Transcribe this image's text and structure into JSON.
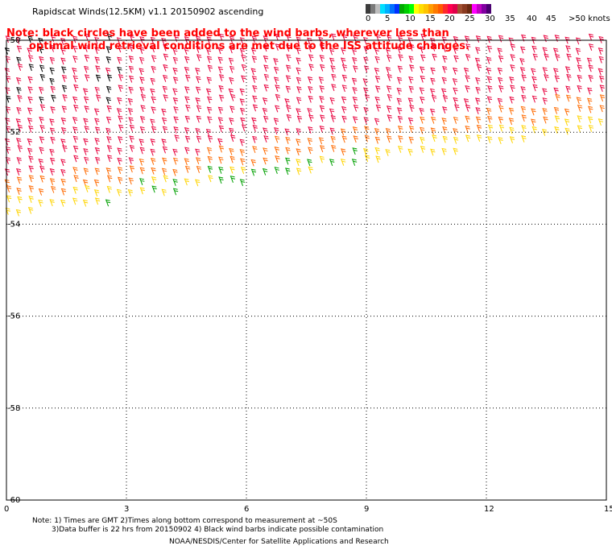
{
  "title": "Rapidscat Winds(12.5KM) v1.1 20150902 ascending",
  "note": {
    "line1": "Note: black circles have been added to the wind barbs, wherever less than",
    "line2": "optimal wind retrieval conditions are met due to the ISS attitude changes."
  },
  "color_scale": {
    "colors": [
      "#3c3c3c",
      "#7a7a7a",
      "#bdbdbd",
      "#00e0ff",
      "#00b0ff",
      "#0070ff",
      "#0030ff",
      "#00aa00",
      "#00d000",
      "#00ff00",
      "#ffff00",
      "#ffdd00",
      "#ffc400",
      "#ff9c00",
      "#ff7a00",
      "#ff5a00",
      "#ff2a2a",
      "#ff0050",
      "#e0004a",
      "#a05030",
      "#8a3a20",
      "#6a2a10",
      "#ff00ff",
      "#c000c0",
      "#8000a0",
      "#4a0070"
    ],
    "labels": [
      "0",
      "5",
      "10",
      "15",
      "20",
      "25",
      "30",
      "35",
      "40",
      "45",
      ">50 knots"
    ]
  },
  "axes": {
    "x_ticks": [
      "0",
      "3",
      "6",
      "9",
      "12",
      "15"
    ],
    "y_ticks": [
      "-50",
      "-52",
      "-54",
      "-56",
      "-58",
      "-60"
    ]
  },
  "footnotes": {
    "line1": "Note: 1) Times are GMT 2)Times along bottom correspond to measurement at ~50S",
    "line2": "3)Data buffer is 22 hrs from 20150902 4) Black wind barbs indicate possible contamination",
    "line3": "NOAA/NESDIS/Center for Satellite Applications and Research"
  },
  "map": {
    "lon_range": [
      0,
      15
    ],
    "lat_range": [
      -60,
      -50
    ],
    "coverage": "swath of wind barbs across northern part of map, lower edge slanting from about -53.9 at lon 0 to -52 at lon 15",
    "barb_colors": {
      "strong": "#e8003c",
      "moderate": "#ff6a00",
      "light": "#ffd400",
      "weak": "#00a000",
      "flagged": "#000000"
    }
  }
}
